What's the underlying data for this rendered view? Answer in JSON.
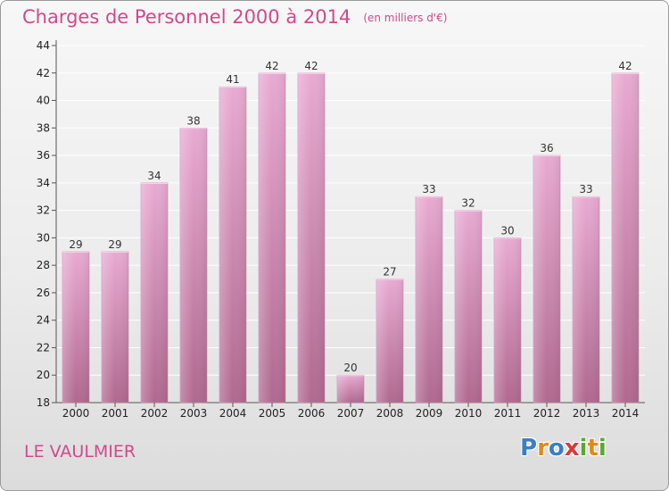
{
  "title": "Charges de Personnel 2000 à 2014",
  "unit": "(en milliers d'€)",
  "place": "LE VAULMIER",
  "logo": {
    "text": "Proxiti",
    "letters": [
      {
        "char": "P",
        "color": "#3b7fc4"
      },
      {
        "char": "r",
        "color": "#e08a1e"
      },
      {
        "char": "o",
        "color": "#3b7fc4"
      },
      {
        "char": "x",
        "color": "#d63a3a"
      },
      {
        "char": "i",
        "color": "#5aa832"
      },
      {
        "char": "t",
        "color": "#e08a1e"
      },
      {
        "char": "i",
        "color": "#5aa832"
      }
    ]
  },
  "colors": {
    "bar_top": "#e8aad2",
    "bar_bottom": "#b0698f",
    "grid": "#ffffff",
    "axis_text": "#222222",
    "accent": "#d0498c"
  },
  "chart_data": {
    "type": "bar",
    "categories": [
      "2000",
      "2001",
      "2002",
      "2003",
      "2004",
      "2005",
      "2006",
      "2007",
      "2008",
      "2009",
      "2010",
      "2011",
      "2012",
      "2013",
      "2014"
    ],
    "values": [
      29,
      29,
      34,
      38,
      41,
      42,
      42,
      20,
      27,
      33,
      32,
      30,
      36,
      33,
      42
    ],
    "ylim": [
      18,
      44
    ],
    "yticks": [
      18,
      20,
      22,
      24,
      26,
      28,
      30,
      32,
      34,
      36,
      38,
      40,
      42,
      44
    ],
    "grid": true
  }
}
